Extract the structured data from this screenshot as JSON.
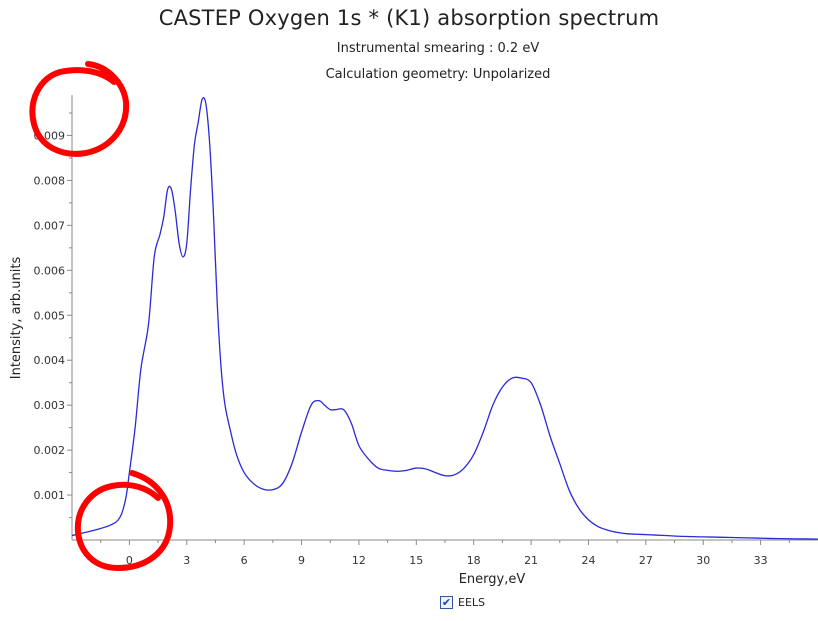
{
  "chart_data": {
    "type": "line",
    "title": "CASTEP Oxygen 1s * (K1) absorption spectrum",
    "subtitle_lines": [
      "Instrumental smearing : 0.2 eV",
      "Calculation geometry: Unpolarized"
    ],
    "xlabel": "Energy,eV",
    "ylabel": "Intensity, arb.units",
    "xlim": [
      -3,
      36
    ],
    "ylim": [
      0,
      0.0099
    ],
    "x_ticks": [
      "0",
      "3",
      "6",
      "9",
      "12",
      "15",
      "18",
      "21",
      "24",
      "27",
      "30",
      "33"
    ],
    "y_ticks": [
      "0.001",
      "0.002",
      "0.003",
      "0.004",
      "0.005",
      "0.006",
      "0.007",
      "0.008",
      "0.009"
    ],
    "grid": false,
    "legend_position": "bottom-center",
    "series": [
      {
        "name": "EELS",
        "color": "#2a2ad8",
        "x": [
          -3,
          -2,
          -1,
          -0.5,
          -0.2,
          0,
          0.3,
          0.6,
          1.0,
          1.3,
          1.6,
          1.8,
          2.0,
          2.2,
          2.4,
          2.6,
          2.8,
          3.0,
          3.2,
          3.4,
          3.6,
          3.8,
          4.0,
          4.2,
          4.4,
          4.6,
          4.8,
          5.0,
          5.3,
          5.6,
          6.0,
          6.5,
          7.0,
          7.5,
          8.0,
          8.5,
          9.0,
          9.5,
          9.9,
          10.2,
          10.5,
          10.8,
          11.2,
          11.6,
          12.0,
          12.5,
          13.0,
          13.5,
          14.0,
          14.5,
          15.0,
          15.5,
          16.0,
          16.5,
          17.0,
          17.5,
          18.0,
          18.5,
          19.0,
          19.5,
          20.0,
          20.5,
          21.0,
          21.5,
          22.0,
          22.5,
          23.0,
          23.5,
          24.0,
          24.5,
          25.0,
          25.5,
          26.0,
          27.0,
          28.0,
          29.0,
          30.0,
          31.0,
          32.0,
          33.0,
          34.0,
          35.0,
          36.0
        ],
        "values": [
          0.0001,
          0.0002,
          0.00033,
          0.0005,
          0.0009,
          0.0015,
          0.0025,
          0.0038,
          0.0048,
          0.0063,
          0.0068,
          0.0072,
          0.0078,
          0.0078,
          0.0073,
          0.0066,
          0.0063,
          0.0066,
          0.0078,
          0.0088,
          0.0093,
          0.0098,
          0.0097,
          0.0088,
          0.0072,
          0.0052,
          0.0038,
          0.003,
          0.0024,
          0.0019,
          0.0015,
          0.00125,
          0.00113,
          0.00112,
          0.00125,
          0.0017,
          0.0024,
          0.003,
          0.0031,
          0.003,
          0.0029,
          0.0029,
          0.0029,
          0.0026,
          0.0021,
          0.0018,
          0.0016,
          0.00155,
          0.00153,
          0.00155,
          0.0016,
          0.00158,
          0.0015,
          0.00143,
          0.00145,
          0.0016,
          0.0019,
          0.0024,
          0.003,
          0.0034,
          0.0036,
          0.0036,
          0.0035,
          0.003,
          0.0023,
          0.0017,
          0.0011,
          0.0007,
          0.00045,
          0.0003,
          0.00022,
          0.00017,
          0.00014,
          0.00012,
          0.0001,
          8e-05,
          7e-05,
          6e-05,
          5e-05,
          4e-05,
          3e-05,
          2.5e-05,
          2e-05
        ]
      }
    ]
  },
  "legend": {
    "checked": true,
    "check_glyph": "✔",
    "label": "EELS"
  },
  "colors": {
    "series_line": "#2a2ad8",
    "axis": "#888888",
    "annotation_circle": "#ff0000"
  }
}
